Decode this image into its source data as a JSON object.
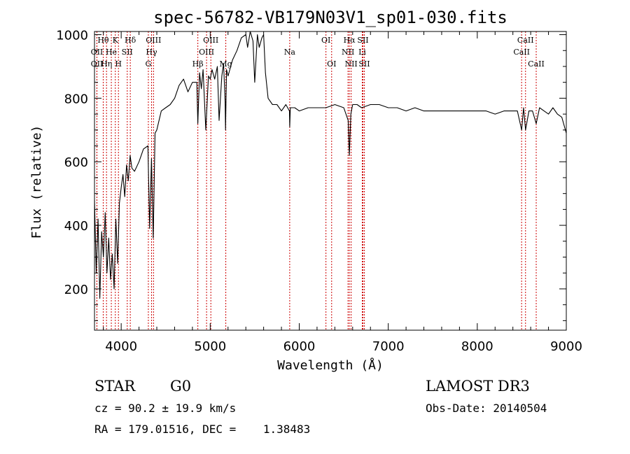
{
  "chart_data": {
    "type": "line",
    "title": "spec-56782-VB179N03V1_sp01-030.fits",
    "xlabel": "Wavelength (Å)",
    "ylabel": "Flux (relative)",
    "xlim": [
      3700,
      9000
    ],
    "ylim": [
      70,
      1010
    ],
    "x_ticks": [
      4000,
      5000,
      6000,
      7000,
      8000,
      9000
    ],
    "x_tick_labels": [
      "4000",
      "5000",
      "6000",
      "7000",
      "8000",
      "9000"
    ],
    "y_ticks": [
      200,
      400,
      600,
      800,
      1000
    ],
    "y_tick_labels": [
      "200",
      "400",
      "600",
      "800",
      "1000"
    ],
    "series": [
      {
        "name": "spectrum",
        "color": "#000000",
        "x": [
          3700,
          3720,
          3740,
          3760,
          3780,
          3800,
          3820,
          3840,
          3860,
          3880,
          3900,
          3920,
          3940,
          3960,
          3980,
          4000,
          4020,
          4040,
          4060,
          4080,
          4100,
          4120,
          4150,
          4200,
          4250,
          4300,
          4320,
          4340,
          4360,
          4380,
          4400,
          4450,
          4500,
          4550,
          4600,
          4650,
          4700,
          4750,
          4800,
          4850,
          4861,
          4880,
          4900,
          4920,
          4950,
          4980,
          5000,
          5020,
          5050,
          5080,
          5100,
          5130,
          5150,
          5167,
          5172,
          5183,
          5200,
          5250,
          5300,
          5350,
          5400,
          5420,
          5450,
          5480,
          5500,
          5530,
          5550,
          5580,
          5600,
          5620,
          5650,
          5700,
          5750,
          5800,
          5850,
          5890,
          5893,
          5900,
          5950,
          6000,
          6100,
          6200,
          6300,
          6400,
          6500,
          6550,
          6563,
          6580,
          6600,
          6650,
          6700,
          6800,
          6900,
          7000,
          7100,
          7200,
          7300,
          7400,
          7500,
          7600,
          7700,
          7800,
          7900,
          8000,
          8100,
          8200,
          8300,
          8400,
          8450,
          8498,
          8520,
          8542,
          8580,
          8620,
          8662,
          8700,
          8750,
          8800,
          8850,
          8900,
          8950,
          9000
        ],
        "values": [
          480,
          250,
          420,
          170,
          380,
          300,
          440,
          250,
          360,
          230,
          310,
          200,
          420,
          280,
          470,
          520,
          560,
          490,
          590,
          540,
          620,
          580,
          570,
          600,
          640,
          650,
          390,
          610,
          360,
          690,
          700,
          760,
          770,
          780,
          800,
          840,
          860,
          820,
          850,
          850,
          720,
          880,
          830,
          890,
          700,
          870,
          860,
          890,
          860,
          900,
          730,
          870,
          910,
          790,
          700,
          890,
          870,
          920,
          950,
          990,
          1000,
          960,
          1020,
          980,
          850,
          1000,
          960,
          990,
          1000,
          880,
          800,
          780,
          780,
          760,
          780,
          760,
          710,
          770,
          770,
          760,
          770,
          770,
          770,
          780,
          770,
          730,
          620,
          750,
          780,
          780,
          770,
          780,
          780,
          770,
          770,
          760,
          770,
          760,
          760,
          760,
          760,
          760,
          760,
          760,
          760,
          750,
          760,
          760,
          760,
          700,
          770,
          700,
          760,
          760,
          720,
          770,
          760,
          750,
          770,
          750,
          740,
          690
        ]
      }
    ],
    "spectral_lines": [
      {
        "label": "Hθ",
        "x": 3798,
        "row": 1
      },
      {
        "label": "OII",
        "x": 3727,
        "row": 2
      },
      {
        "label": "OII",
        "x": 3727,
        "row": 3
      },
      {
        "label": "He",
        "x": 3889,
        "row": 2
      },
      {
        "label": "Hη",
        "x": 3835,
        "row": 3
      },
      {
        "label": "K",
        "x": 3934,
        "row": 1
      },
      {
        "label": "H",
        "x": 3969,
        "row": 3
      },
      {
        "label": "SII",
        "x": 4068,
        "row": 2
      },
      {
        "label": "Hδ",
        "x": 4102,
        "row": 1
      },
      {
        "label": "OIII",
        "x": 4363,
        "row": 1
      },
      {
        "label": "Hγ",
        "x": 4341,
        "row": 2
      },
      {
        "label": "G",
        "x": 4305,
        "row": 3
      },
      {
        "label": "Hβ",
        "x": 4861,
        "row": 3
      },
      {
        "label": "OIII",
        "x": 5007,
        "row": 1
      },
      {
        "label": "OIII",
        "x": 4959,
        "row": 2
      },
      {
        "label": "Mg",
        "x": 5175,
        "row": 3
      },
      {
        "label": "Na",
        "x": 5893,
        "row": 2
      },
      {
        "label": "OI",
        "x": 6300,
        "row": 1
      },
      {
        "label": "OI",
        "x": 6364,
        "row": 3
      },
      {
        "label": "Hα",
        "x": 6563,
        "row": 1
      },
      {
        "label": "NII",
        "x": 6548,
        "row": 2
      },
      {
        "label": "NII",
        "x": 6583,
        "row": 3
      },
      {
        "label": "SII",
        "x": 6716,
        "row": 1
      },
      {
        "label": "Li",
        "x": 6708,
        "row": 2
      },
      {
        "label": "SII",
        "x": 6731,
        "row": 3
      },
      {
        "label": "CaII",
        "x": 8542,
        "row": 1
      },
      {
        "label": "CaII",
        "x": 8498,
        "row": 2
      },
      {
        "label": "CaII",
        "x": 8662,
        "row": 3
      }
    ],
    "line_marker_color": "#cc0000"
  },
  "info": {
    "class": "STAR",
    "subclass": "G0",
    "survey": "LAMOST DR3",
    "cz": "cz = 90.2 ± 19.9 km/s",
    "obs_date": "Obs-Date: 20140504",
    "radec": "RA = 179.01516, DEC =    1.38483"
  }
}
